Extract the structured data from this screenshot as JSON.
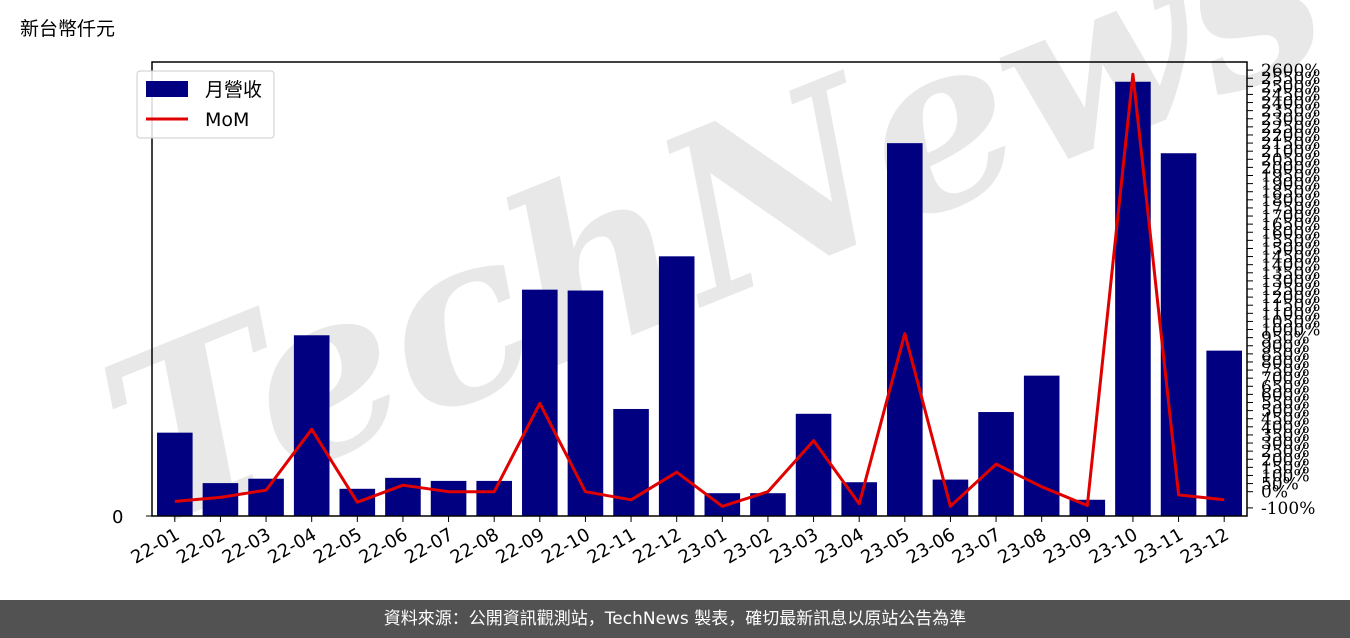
{
  "header": {
    "unit_label": "新台幣仟元"
  },
  "watermark": {
    "text": "TechNews"
  },
  "footer": {
    "text": "資料來源：公開資訊觀測站，TechNews 製表，確切最新訊息以原站公告為準"
  },
  "chart_data": {
    "type": "bar",
    "title": "",
    "xlabel": "",
    "ylabel": "",
    "categories": [
      "22-01",
      "22-02",
      "22-03",
      "22-04",
      "22-05",
      "22-06",
      "22-07",
      "22-08",
      "22-09",
      "22-10",
      "22-11",
      "22-12",
      "23-01",
      "23-02",
      "23-03",
      "23-04",
      "23-05",
      "23-06",
      "23-07",
      "23-08",
      "23-09",
      "23-10",
      "23-11",
      "23-12"
    ],
    "series": [
      {
        "name": "月營收",
        "type": "bar",
        "axis": "left",
        "color": "#000080",
        "values": [
          190,
          75,
          85,
          412,
          62,
          87,
          80,
          80,
          516,
          514,
          244,
          592,
          52,
          52,
          233,
          77,
          850,
          83,
          237,
          320,
          37,
          990,
          827,
          377
        ]
      },
      {
        "name": "MoM",
        "type": "line",
        "axis": "right",
        "color": "#e00000",
        "values": [
          -60,
          -35,
          10,
          385,
          -65,
          40,
          0,
          0,
          545,
          0,
          -50,
          120,
          -90,
          0,
          315,
          -75,
          975,
          -90,
          170,
          30,
          -85,
          2575,
          -20,
          -50
        ]
      }
    ],
    "y_left": {
      "ticks": [
        0
      ],
      "tick_labels": [
        "0"
      ],
      "ylim": [
        0,
        1035
      ]
    },
    "y_right": {
      "ylim": [
        -150,
        2650
      ],
      "ticks": [
        -100,
        0,
        50,
        100,
        150,
        200,
        250,
        300,
        350,
        400,
        450,
        500,
        550,
        600,
        650,
        700,
        750,
        800,
        850,
        900,
        950,
        1000,
        1050,
        1100,
        1150,
        1200,
        1250,
        1300,
        1350,
        1400,
        1450,
        1500,
        1550,
        1600,
        1650,
        1700,
        1750,
        1800,
        1850,
        1900,
        1950,
        2000,
        2050,
        2100,
        2150,
        2200,
        2250,
        2300,
        2350,
        2400,
        2450,
        2500,
        2550,
        2600
      ],
      "tick_labels": [
        "-100%",
        "0%",
        "50%",
        "100%",
        "150%",
        "200%",
        "250%",
        "300%",
        "350%",
        "400%",
        "450%",
        "500%",
        "550%",
        "600%",
        "650%",
        "700%",
        "750%",
        "800%",
        "850%",
        "900%",
        "950%",
        "1000%",
        "1050%",
        "1100%",
        "1150%",
        "1200%",
        "1250%",
        "1300%",
        "1350%",
        "1400%",
        "1450%",
        "1500%",
        "1550%",
        "1600%",
        "1650%",
        "1700%",
        "1750%",
        "1800%",
        "1850%",
        "1900%",
        "1950%",
        "2000%",
        "2050%",
        "2100%",
        "2150%",
        "2200%",
        "2250%",
        "2300%",
        "2350%",
        "2400%",
        "2450%",
        "2500%",
        "2550%",
        "2600%"
      ]
    },
    "legend": {
      "position": "top-left",
      "entries": [
        {
          "label": "月營收",
          "kind": "bar",
          "color": "#000080"
        },
        {
          "label": "MoM",
          "kind": "line",
          "color": "#e00000"
        }
      ]
    },
    "grid": false
  }
}
